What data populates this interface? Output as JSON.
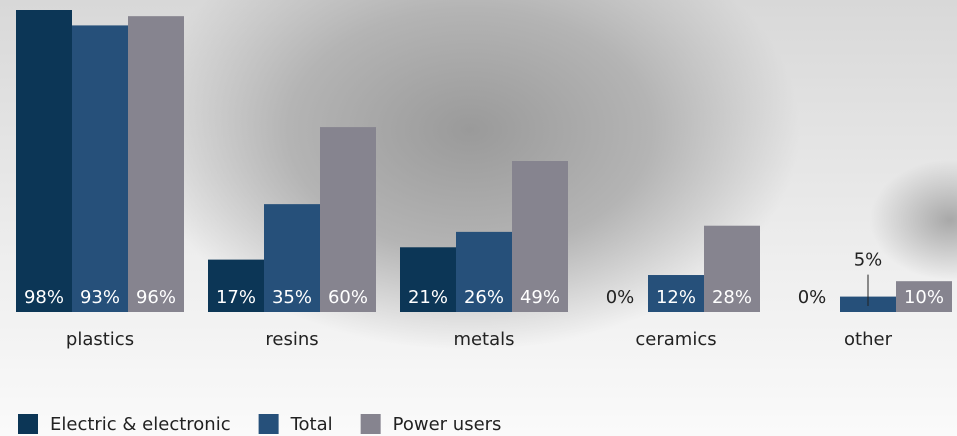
{
  "chart_data": {
    "type": "bar",
    "categories": [
      "plastics",
      "resins",
      "metals",
      "ceramics",
      "other"
    ],
    "series": [
      {
        "name": "Electric & electronic",
        "color": "#0c3656",
        "values": [
          98,
          17,
          21,
          0,
          0
        ],
        "value_labels": [
          "98%",
          "17%",
          "21%",
          "0%",
          "0%"
        ]
      },
      {
        "name": "Total",
        "color": "#26507a",
        "values": [
          93,
          35,
          26,
          12,
          5
        ],
        "value_labels": [
          "93%",
          "35%",
          "26%",
          "12%",
          "5%"
        ]
      },
      {
        "name": "Power users",
        "color": "#86848f",
        "values": [
          96,
          60,
          49,
          28,
          10
        ],
        "value_labels": [
          "96%",
          "60%",
          "49%",
          "28%",
          "10%"
        ]
      }
    ]
  }
}
